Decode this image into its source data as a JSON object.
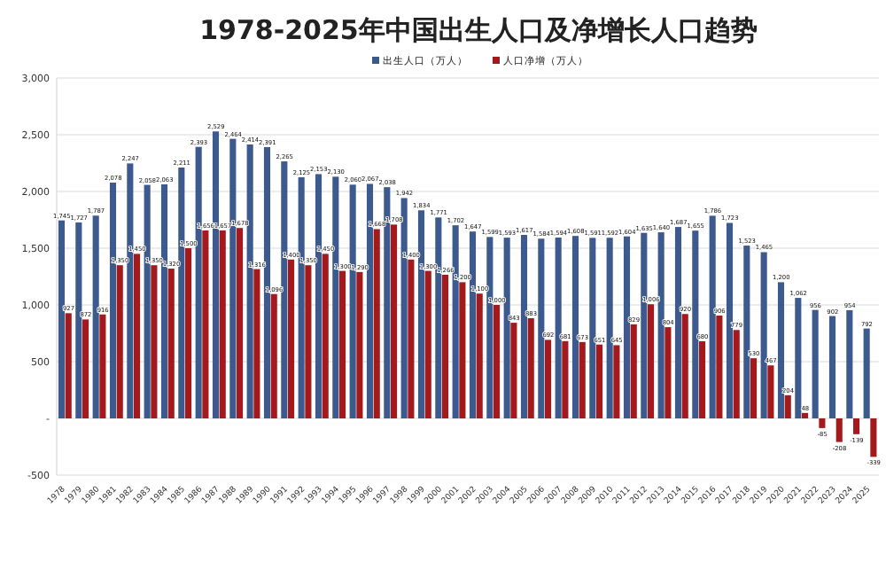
{
  "chart_data": {
    "type": "bar",
    "title": "1978-2025年中国出生人口及净增长人口趋势",
    "categories": [
      "1978",
      "1979",
      "1980",
      "1981",
      "1982",
      "1983",
      "1984",
      "1985",
      "1986",
      "1987",
      "1988",
      "1989",
      "1990",
      "1991",
      "1992",
      "1993",
      "1994",
      "1995",
      "1996",
      "1997",
      "1998",
      "1999",
      "2000",
      "2001",
      "2002",
      "2003",
      "2004",
      "2005",
      "2006",
      "2007",
      "2008",
      "2009",
      "2010",
      "2011",
      "2012",
      "2013",
      "2014",
      "2015",
      "2016",
      "2017",
      "2018",
      "2019",
      "2020",
      "2021",
      "2022",
      "2023",
      "2024",
      "2025"
    ],
    "series": [
      {
        "name": "出生人口（万人）",
        "color": "#3d5a8f",
        "values": [
          1745,
          1727,
          1787,
          2078,
          2247,
          2058,
          2063,
          2211,
          2393,
          2529,
          2464,
          2414,
          2391,
          2265,
          2125,
          2153,
          2130,
          2060,
          2067,
          2038,
          1942,
          1834,
          1771,
          1702,
          1647,
          1599,
          1593,
          1617,
          1584,
          1594,
          1608,
          1591,
          1592,
          1604,
          1635,
          1640,
          1687,
          1655,
          1786,
          1723,
          1523,
          1465,
          1200,
          1062,
          956,
          902,
          954,
          792
        ],
        "value_labels": [
          "1,745",
          "1,727",
          "1,787",
          "2,078",
          "2,247",
          "2,058",
          "2,063",
          "2,211",
          "2,393",
          "2,529",
          "2,464",
          "2,414",
          "2,391",
          "2,265",
          "2,125",
          "2,153",
          "2,130",
          "2,060",
          "2,067",
          "2,038",
          "1,942",
          "1,834",
          "1,771",
          "1,702",
          "1,647",
          "1,599",
          "1,593",
          "1,617",
          "1,584",
          "1,594",
          "1,608",
          "1,591",
          "1,592",
          "1,604",
          "1,635",
          "1,640",
          "1,687",
          "1,655",
          "1,786",
          "1,723",
          "1,523",
          "1,465",
          "1,200",
          "1,062",
          "956",
          "902",
          "954",
          "792"
        ]
      },
      {
        "name": "人口净增（万人）",
        "color": "#a3191c",
        "values": [
          927,
          872,
          916,
          1350,
          1450,
          1350,
          1320,
          1500,
          1656,
          1657,
          1678,
          1316,
          1096,
          1400,
          1350,
          1450,
          1300,
          1290,
          1668,
          1708,
          1400,
          1300,
          1266,
          1200,
          1100,
          1000,
          843,
          883,
          692,
          681,
          673,
          651,
          645,
          829,
          1006,
          804,
          920,
          680,
          906,
          779,
          530,
          467,
          204,
          48,
          -85,
          -208,
          -139,
          -339
        ],
        "value_labels": [
          "927",
          "872",
          "916",
          "1,350",
          "1,450",
          "1,350",
          "1,320",
          "1,500",
          "1,656",
          "1,657",
          "1,678",
          "1,316",
          "1,096",
          "1,400",
          "1,350",
          "1,450",
          "1,300",
          "1,290",
          "1,668",
          "1,708",
          "1,400",
          "1,300",
          "1,266",
          "1,200",
          "1,100",
          "1,000",
          "843",
          "883",
          "692",
          "681",
          "673",
          "651",
          "645",
          "829",
          "1,006",
          "804",
          "920",
          "680",
          "906",
          "779",
          "530",
          "467",
          "204",
          "48",
          "-85",
          "-208",
          "-139",
          "-339"
        ]
      }
    ],
    "ylim": [
      -500,
      3000
    ],
    "yticks": [
      {
        "value": -500,
        "label": "-500"
      },
      {
        "value": 0,
        "label": "-"
      },
      {
        "value": 500,
        "label": "500"
      },
      {
        "value": 1000,
        "label": "1,000"
      },
      {
        "value": 1500,
        "label": "1,500"
      },
      {
        "value": 2000,
        "label": "2,000"
      },
      {
        "value": 2500,
        "label": "2,500"
      },
      {
        "value": 3000,
        "label": "3,000"
      }
    ],
    "grid": "y",
    "legend": "top"
  }
}
